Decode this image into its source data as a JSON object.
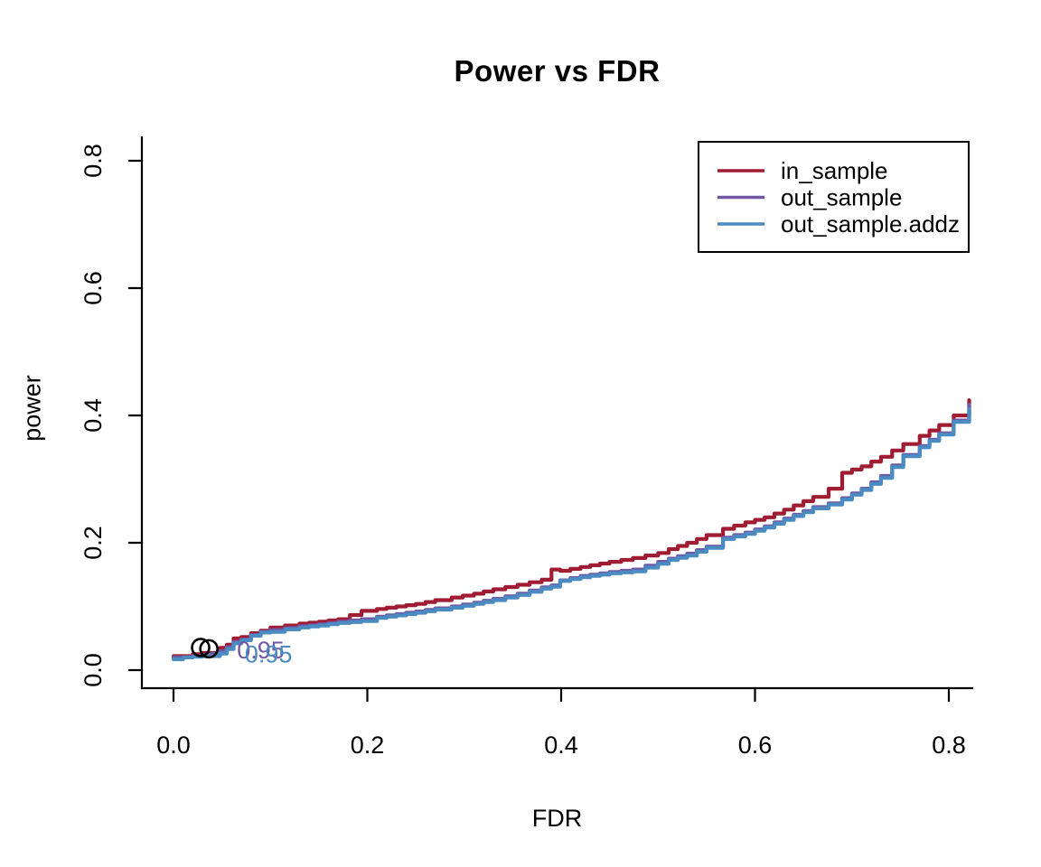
{
  "chart_data": {
    "type": "line",
    "title": "Power vs FDR",
    "xlabel": "FDR",
    "ylabel": "power",
    "xlim": [
      -0.033,
      0.854
    ],
    "ylim": [
      -0.028,
      0.837
    ],
    "x_ticks": [
      0.0,
      0.2,
      0.4,
      0.6,
      0.8
    ],
    "y_ticks": [
      0.0,
      0.2,
      0.4,
      0.6,
      0.8
    ],
    "x_tick_labels": [
      "0.0",
      "0.2",
      "0.4",
      "0.6",
      "0.8"
    ],
    "y_tick_labels": [
      "0.0",
      "0.2",
      "0.4",
      "0.6",
      "0.8"
    ],
    "grid": false,
    "axis_color": "#000000",
    "background_color": "#ffffff",
    "line_style": "step",
    "x": [
      0.0,
      0.01,
      0.02,
      0.03,
      0.04,
      0.048,
      0.055,
      0.062,
      0.07,
      0.08,
      0.09,
      0.1,
      0.115,
      0.13,
      0.15,
      0.17,
      0.194,
      0.21,
      0.23,
      0.25,
      0.27,
      0.287,
      0.31,
      0.33,
      0.355,
      0.38,
      0.39,
      0.399,
      0.42,
      0.45,
      0.474,
      0.5,
      0.511,
      0.53,
      0.55,
      0.567,
      0.59,
      0.61,
      0.63,
      0.66,
      0.676,
      0.69,
      0.71,
      0.73,
      0.753,
      0.77,
      0.79,
      0.805,
      0.821
    ],
    "series": [
      {
        "name": "in_sample",
        "color": "#A01C33",
        "values": [
          0.022,
          0.022,
          0.025,
          0.027,
          0.027,
          0.035,
          0.04,
          0.05,
          0.052,
          0.058,
          0.062,
          0.067,
          0.07,
          0.073,
          0.076,
          0.08,
          0.093,
          0.096,
          0.1,
          0.104,
          0.11,
          0.114,
          0.12,
          0.127,
          0.134,
          0.142,
          0.158,
          0.156,
          0.162,
          0.17,
          0.176,
          0.184,
          0.19,
          0.2,
          0.212,
          0.222,
          0.232,
          0.24,
          0.252,
          0.272,
          0.285,
          0.31,
          0.32,
          0.335,
          0.355,
          0.368,
          0.385,
          0.4,
          0.424
        ]
      },
      {
        "name": "out_sample",
        "color": "#7058A5",
        "values": [
          0.02,
          0.02,
          0.022,
          0.024,
          0.026,
          0.03,
          0.036,
          0.044,
          0.048,
          0.055,
          0.06,
          0.063,
          0.066,
          0.069,
          0.072,
          0.076,
          0.08,
          0.084,
          0.088,
          0.092,
          0.097,
          0.1,
          0.106,
          0.112,
          0.12,
          0.13,
          0.133,
          0.141,
          0.148,
          0.154,
          0.158,
          0.17,
          0.175,
          0.183,
          0.194,
          0.208,
          0.216,
          0.226,
          0.238,
          0.256,
          0.262,
          0.27,
          0.285,
          0.305,
          0.338,
          0.352,
          0.372,
          0.392,
          0.417
        ]
      },
      {
        "name": "out_sample.addz",
        "color": "#4A8BC2",
        "values": [
          0.017,
          0.02,
          0.021,
          0.022,
          0.022,
          0.026,
          0.033,
          0.042,
          0.047,
          0.054,
          0.059,
          0.06,
          0.064,
          0.067,
          0.07,
          0.074,
          0.077,
          0.082,
          0.086,
          0.09,
          0.095,
          0.098,
          0.104,
          0.11,
          0.118,
          0.128,
          0.131,
          0.14,
          0.146,
          0.152,
          0.155,
          0.167,
          0.173,
          0.18,
          0.192,
          0.206,
          0.214,
          0.224,
          0.236,
          0.254,
          0.26,
          0.268,
          0.283,
          0.302,
          0.336,
          0.35,
          0.37,
          0.39,
          0.41
        ]
      }
    ],
    "legend": {
      "position": "top-right",
      "entries": [
        {
          "label": "in_sample",
          "color": "#A01C33"
        },
        {
          "label": "out_sample",
          "color": "#7058A5"
        },
        {
          "label": "out_sample.addz",
          "color": "#4A8BC2"
        }
      ]
    },
    "annotations": {
      "markers": [
        {
          "shape": "circle-open",
          "color": "#000000",
          "x": 0.028,
          "y": 0.0355
        },
        {
          "shape": "circle-open",
          "color": "#000000",
          "x": 0.0365,
          "y": 0.0335
        }
      ],
      "labels": [
        {
          "text": "0.95",
          "color": "#7058A5",
          "x": 0.09,
          "y": 0.031
        },
        {
          "text": "0.95",
          "color": "#4A8BC2",
          "x": 0.098,
          "y": 0.025
        }
      ]
    }
  }
}
